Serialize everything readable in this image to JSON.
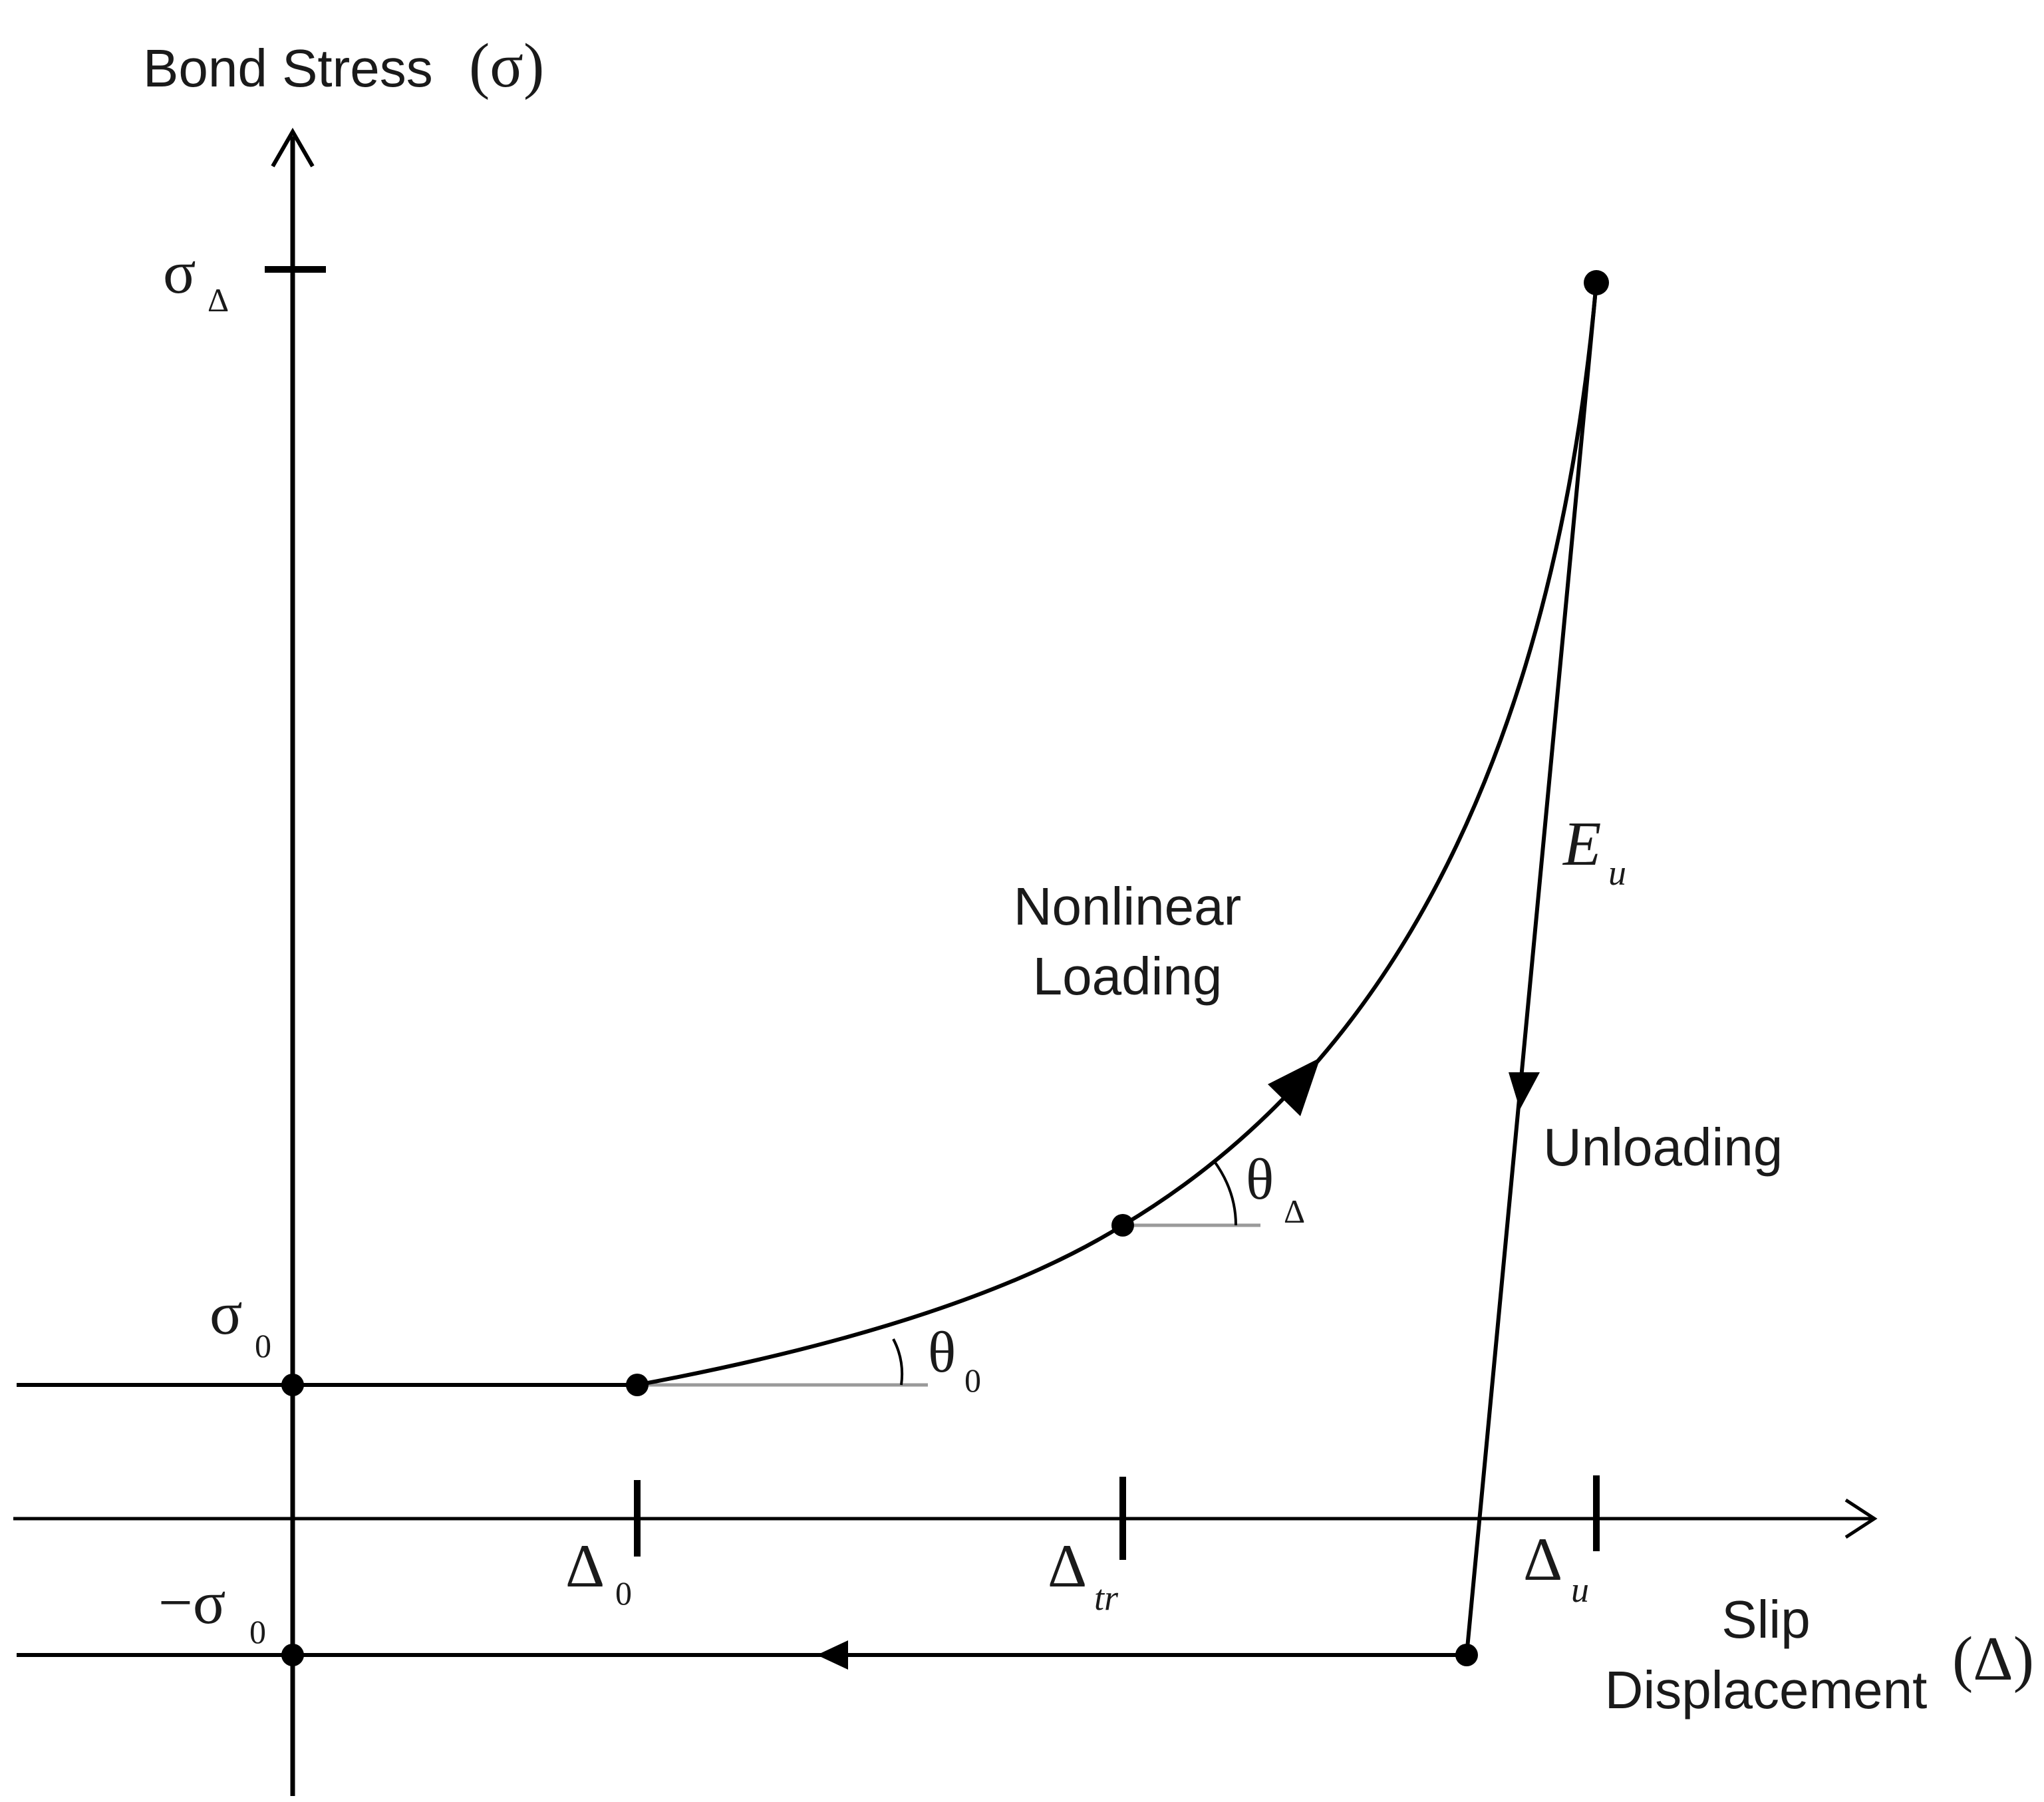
{
  "axes": {
    "y_title": "Bond Stress",
    "y_title_sym": "(σ)",
    "x_title_line1": "Slip",
    "x_title_line2": "Displacement",
    "x_title_sym": "(Δ)"
  },
  "y_ticks": {
    "sigma_delta": "σ",
    "sigma_delta_sub": "Δ",
    "sigma_0": "σ",
    "sigma_0_sub": "0",
    "neg_sigma_0": "−σ",
    "neg_sigma_0_sub": "0"
  },
  "x_ticks": {
    "delta_0": "Δ",
    "delta_0_sub": "0",
    "delta_tr": "Δ",
    "delta_tr_sub": "tr",
    "delta_u": "Δ",
    "delta_u_sub": "u"
  },
  "annotations": {
    "nonlinear_line1": "Nonlinear",
    "nonlinear_line2": "Loading",
    "unloading": "Unloading",
    "modulus": "E",
    "modulus_sub": "u",
    "theta_0": "θ",
    "theta_0_sub": "0",
    "theta_delta": "θ",
    "theta_delta_sub": "Δ"
  }
}
